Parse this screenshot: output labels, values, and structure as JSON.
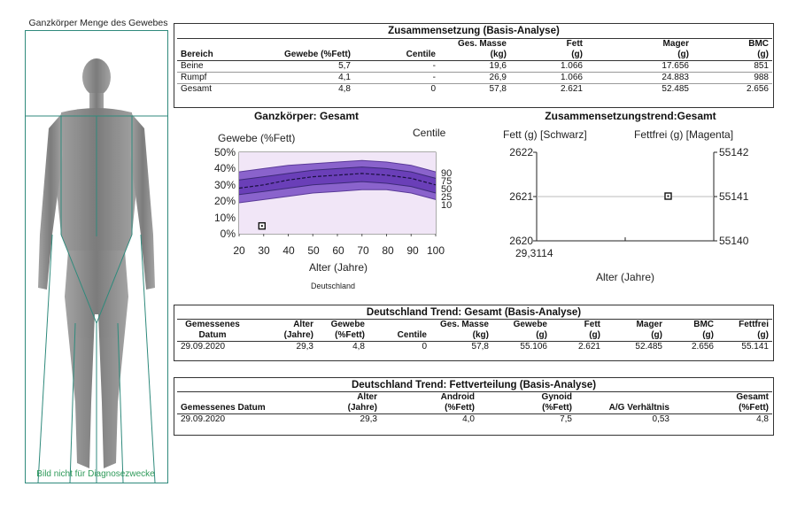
{
  "scan": {
    "title": "Ganzkörper Menge des Gewebes",
    "note": "Bild nicht für Diagnosezwecke"
  },
  "composition": {
    "title": "Zusammensetzung (Basis-Analyse)",
    "headers_top": [
      "",
      "",
      "",
      "Ges. Masse",
      "Fett",
      "Mager",
      "BMC"
    ],
    "headers": [
      "Bereich",
      "Gewebe (%Fett)",
      "Centile",
      "(kg)",
      "(g)",
      "(g)",
      "(g)"
    ],
    "rows": [
      [
        "Beine",
        "5,7",
        "-",
        "19,6",
        "1.066",
        "17.656",
        "851"
      ],
      [
        "Rumpf",
        "4,1",
        "-",
        "26,9",
        "1.066",
        "24.883",
        "988"
      ],
      [
        "Gesamt",
        "4,8",
        "0",
        "57,8",
        "2.621",
        "52.485",
        "2.656"
      ]
    ]
  },
  "centile_chart": {
    "title": "Ganzkörper: Gesamt",
    "ylabel": "Gewebe (%Fett)",
    "right_label": "Centile",
    "xlabel": "Alter (Jahre)",
    "footnote": "Deutschland",
    "y_ticks": [
      "50%",
      "40%",
      "30%",
      "20%",
      "10%",
      "0%"
    ],
    "x_ticks": [
      "20",
      "30",
      "40",
      "50",
      "60",
      "70",
      "80",
      "90",
      "100"
    ],
    "centile_labels": [
      "90",
      "75",
      "50",
      "25",
      "10"
    ],
    "band_color": "#8a63cc",
    "inner_band_color": "#6a3fb8",
    "band_fill": "#f1e6f7"
  },
  "chart_data": {
    "type": "scatter",
    "title": "Ganzkörper: Gesamt",
    "xlabel": "Alter (Jahre)",
    "ylabel": "Gewebe (%Fett)",
    "xlim": [
      20,
      100
    ],
    "ylim": [
      0,
      50
    ],
    "x": [
      29.3
    ],
    "y": [
      4.8
    ],
    "centiles": {
      "x": [
        20,
        30,
        40,
        50,
        60,
        70,
        80,
        90,
        100
      ],
      "p10": [
        19,
        21,
        23,
        25,
        26,
        27,
        27,
        25,
        21
      ],
      "p25": [
        24,
        26,
        28,
        30,
        31,
        32,
        31,
        29,
        25
      ],
      "p50": [
        28,
        30,
        33,
        35,
        36,
        37,
        36,
        34,
        30
      ],
      "p75": [
        33,
        35,
        37,
        39,
        40,
        41,
        40,
        38,
        34
      ],
      "p90": [
        38,
        40,
        42,
        43,
        44,
        45,
        44,
        42,
        38
      ]
    }
  },
  "trend_chart": {
    "title": "Zusammensetzungstrend:Gesamt",
    "left_label": "Fett (g) [Schwarz]",
    "right_label": "Fettfrei (g) [Magenta]",
    "left_ticks": [
      "2622",
      "2621",
      "2620"
    ],
    "right_ticks": [
      "55142",
      "55141",
      "55140"
    ],
    "x_tick": "29,3114",
    "xlabel": "Alter (Jahre)",
    "point_fett": 2621,
    "point_fettfrei": 55141
  },
  "trend_total": {
    "title": "Deutschland Trend: Gesamt (Basis-Analyse)",
    "headers_top": [
      "Gemessenes",
      "Alter",
      "Gewebe",
      "",
      "Ges. Masse",
      "Gewebe",
      "Fett",
      "Mager",
      "BMC",
      "Fettfrei"
    ],
    "headers": [
      "Datum",
      "(Jahre)",
      "(%Fett)",
      "Centile",
      "(kg)",
      "(g)",
      "(g)",
      "(g)",
      "(g)",
      "(g)"
    ],
    "rows": [
      [
        "29.09.2020",
        "29,3",
        "4,8",
        "0",
        "57,8",
        "55.106",
        "2.621",
        "52.485",
        "2.656",
        "55.141"
      ]
    ]
  },
  "trend_fat": {
    "title": "Deutschland Trend:  Fettverteilung (Basis-Analyse)",
    "headers_top": [
      "",
      "Alter",
      "Android",
      "Gynoid",
      "",
      "Gesamt"
    ],
    "headers": [
      "Gemessenes Datum",
      "(Jahre)",
      "(%Fett)",
      "(%Fett)",
      "A/G Verhältnis",
      "(%Fett)"
    ],
    "rows": [
      [
        "29.09.2020",
        "29,3",
        "4,0",
        "7,5",
        "0,53",
        "4,8"
      ]
    ]
  }
}
